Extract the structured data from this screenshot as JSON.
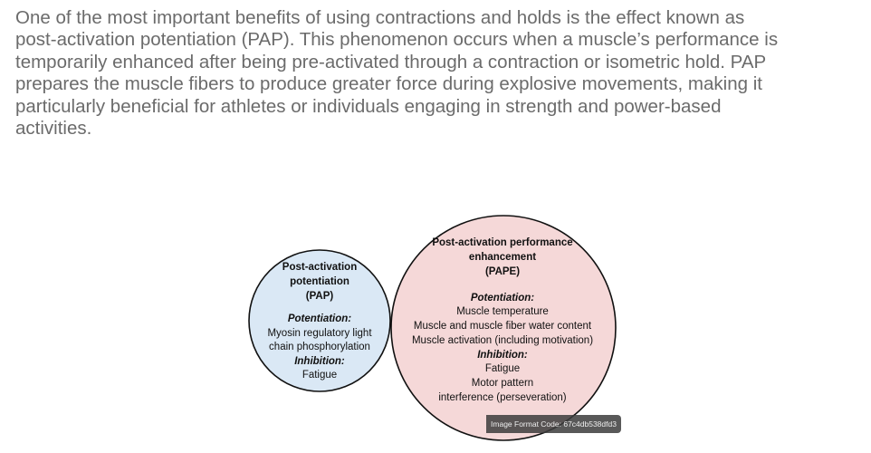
{
  "paragraph": {
    "lines": [
      "One of the most important benefits of using contractions and holds is the effect known as",
      "post-activation potentiation (PAP). This phenomenon occurs when a muscle’s performance is",
      "temporarily enhanced after being pre-activated through a contraction or isometric hold. PAP",
      "prepares the muscle fibers to produce greater force during explosive movements, making it",
      "particularly beneficial for athletes or individuals engaging in strength and power-based",
      "activities."
    ]
  },
  "diagram": {
    "pap": {
      "color": "#dae8f5",
      "title": [
        "Post-activation",
        "potentiation",
        "(PAP)"
      ],
      "potentiation_label": "Potentiation:",
      "potentiation": [
        "Myosin regulatory light",
        "chain phosphorylation"
      ],
      "inhibition_label": "Inhibition:",
      "inhibition": [
        "Fatigue"
      ]
    },
    "pape": {
      "color": "#f5d8d8",
      "title": [
        "Post-activation performance",
        "enhancement",
        "(PAPE)"
      ],
      "potentiation_label": "Potentiation:",
      "potentiation": [
        "Muscle temperature",
        "Muscle and muscle fiber water content",
        "Muscle activation (including motivation)"
      ],
      "inhibition_label": "Inhibition:",
      "inhibition": [
        "Fatigue",
        "Motor pattern",
        "interference (perseveration)"
      ]
    }
  },
  "badge": "Image Format Code: 67c4db538dfd3"
}
